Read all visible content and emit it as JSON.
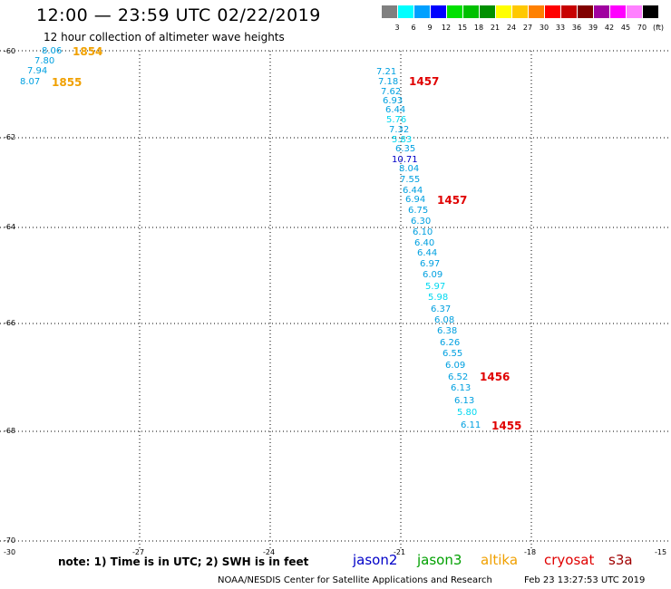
{
  "header": {
    "title": "12:00 — 23:59 UTC 02/22/2019",
    "subtitle": "12 hour collection of altimeter wave heights"
  },
  "colorbar": {
    "colors": [
      "#808080",
      "#00ffff",
      "#00a0ff",
      "#0000ff",
      "#00e000",
      "#00c000",
      "#009000",
      "#ffff00",
      "#ffc800",
      "#ff8000",
      "#ff0000",
      "#c80000",
      "#800000",
      "#a000a0",
      "#ff00ff",
      "#ff80ff",
      "#000000"
    ],
    "labels": [
      "3",
      "6",
      "9",
      "12",
      "15",
      "18",
      "21",
      "24",
      "27",
      "30",
      "33",
      "36",
      "39",
      "42",
      "45",
      "70",
      "(ft)"
    ]
  },
  "axes": {
    "lat_labels": [
      "-60",
      "-62",
      "-64",
      "-66",
      "-68",
      "-70"
    ],
    "lon_labels": [
      "-30",
      "-27",
      "-24",
      "-21",
      "-18",
      "-15"
    ]
  },
  "wave_heights": [
    {
      "v": "8.06",
      "c": "#00a0e0"
    },
    {
      "v": "7.80",
      "c": "#00a0e0"
    },
    {
      "v": "7.94",
      "c": "#00a0e0"
    },
    {
      "v": "8.07",
      "c": "#00a0e0"
    },
    {
      "v": "7.21",
      "c": "#00a0e0"
    },
    {
      "v": "7.18",
      "c": "#00a0e0"
    },
    {
      "v": "7.62",
      "c": "#00a0e0"
    },
    {
      "v": "6.93",
      "c": "#00a0e0"
    },
    {
      "v": "6.44",
      "c": "#00a0e0"
    },
    {
      "v": "5.76",
      "c": "#00d8f0"
    },
    {
      "v": "7.32",
      "c": "#00a0e0"
    },
    {
      "v": "5.83",
      "c": "#00d8f0"
    },
    {
      "v": "6.35",
      "c": "#00a0e0"
    },
    {
      "v": "10.71",
      "c": "#0000c8"
    },
    {
      "v": "8.04",
      "c": "#00a0e0"
    },
    {
      "v": "7.55",
      "c": "#00a0e0"
    },
    {
      "v": "6.44",
      "c": "#00a0e0"
    },
    {
      "v": "6.94",
      "c": "#00a0e0"
    },
    {
      "v": "6.75",
      "c": "#00a0e0"
    },
    {
      "v": "6.30",
      "c": "#00a0e0"
    },
    {
      "v": "6.10",
      "c": "#00a0e0"
    },
    {
      "v": "6.40",
      "c": "#00a0e0"
    },
    {
      "v": "6.44",
      "c": "#00a0e0"
    },
    {
      "v": "6.97",
      "c": "#00a0e0"
    },
    {
      "v": "6.09",
      "c": "#00a0e0"
    },
    {
      "v": "5.97",
      "c": "#00d8f0"
    },
    {
      "v": "5.98",
      "c": "#00d8f0"
    },
    {
      "v": "6.37",
      "c": "#00a0e0"
    },
    {
      "v": "6.08",
      "c": "#00a0e0"
    },
    {
      "v": "6.38",
      "c": "#00a0e0"
    },
    {
      "v": "6.26",
      "c": "#00a0e0"
    },
    {
      "v": "6.55",
      "c": "#00a0e0"
    },
    {
      "v": "6.09",
      "c": "#00a0e0"
    },
    {
      "v": "6.52",
      "c": "#00a0e0"
    },
    {
      "v": "6.13",
      "c": "#00a0e0"
    },
    {
      "v": "6.13",
      "c": "#00a0e0"
    },
    {
      "v": "5.80",
      "c": "#00d8f0"
    },
    {
      "v": "6.11",
      "c": "#00a0e0"
    }
  ],
  "time_labels": [
    {
      "t": "1854",
      "c": "#f0a000"
    },
    {
      "t": "1855",
      "c": "#f0a000"
    },
    {
      "t": "1457",
      "c": "#e00000"
    },
    {
      "t": "1457",
      "c": "#e00000"
    },
    {
      "t": "1456",
      "c": "#e00000"
    },
    {
      "t": "1455",
      "c": "#e00000"
    }
  ],
  "footer": {
    "note": "note: 1) Time is in UTC; 2) SWH is in feet",
    "satellites": [
      {
        "name": "jason2",
        "color": "#0000c8"
      },
      {
        "name": "jason3",
        "color": "#00a000"
      },
      {
        "name": "altika",
        "color": "#f0a000"
      },
      {
        "name": "cryosat",
        "color": "#e00000"
      },
      {
        "name": "s3a",
        "color": "#a00000"
      }
    ],
    "credit": "NOAA/NESDIS Center for Satellite Applications and Research",
    "timestamp": "Feb 23 13:27:53 UTC 2019"
  }
}
